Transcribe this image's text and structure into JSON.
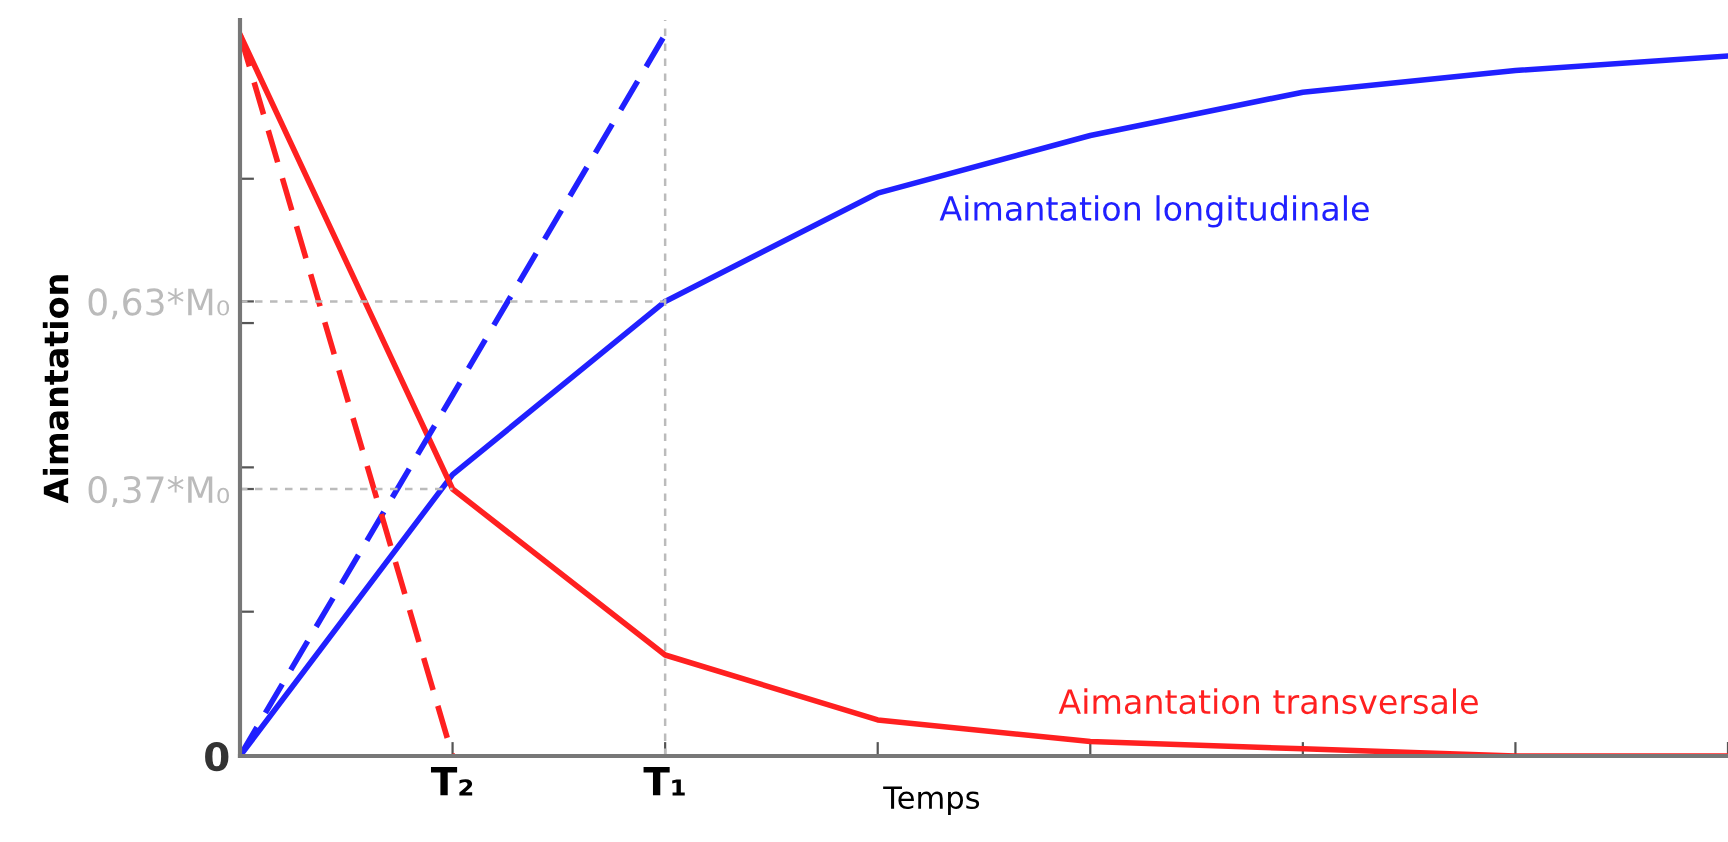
{
  "chart_data": {
    "type": "line",
    "xlabel": "Temps",
    "ylabel": "Aimantation",
    "categories": [
      null,
      "T₂",
      "T₁",
      null,
      null,
      null,
      null,
      null
    ],
    "ylim": [
      0,
      1.02
    ],
    "yticks": [
      0,
      {
        "value": 0.2,
        "label": null
      },
      {
        "value": 0.37,
        "label": "0,37*M₀"
      },
      {
        "value": 0.4,
        "label": null
      },
      {
        "value": 0.6,
        "label": null
      },
      {
        "value": 0.63,
        "label": "0,63*M₀"
      },
      {
        "value": 0.8,
        "label": null
      }
    ],
    "ref_lines": [
      {
        "axis": "x",
        "value": "T₁",
        "color": "#bbbbbb",
        "line_style": "dotted"
      }
    ],
    "series": [
      {
        "name": "Aimantation longitudinale",
        "color": "#2020ff",
        "line_style": "solid",
        "values": [
          0,
          0.39,
          0.63,
          0.78,
          0.86,
          0.92,
          0.95,
          0.97
        ]
      },
      {
        "name": "Aimantation transversale",
        "color": "#ff2020",
        "line_style": "solid",
        "values": [
          1,
          0.37,
          0.14,
          0.05,
          0.02,
          0.01,
          0,
          0
        ]
      },
      {
        "color": "#2020ff",
        "line_style": "dashed",
        "values": [
          0,
          0.5,
          1,
          null,
          null,
          null,
          null,
          null
        ]
      },
      {
        "color": "#ff2020",
        "line_style": "dashed",
        "values": [
          1,
          0,
          null,
          null,
          null,
          null,
          null,
          null
        ]
      },
      {
        "color": "#bbbbbb",
        "line_style": "dotted",
        "values": [
          0.63,
          0.63,
          0.63,
          null,
          null,
          null,
          null,
          null
        ]
      },
      {
        "color": "#bbbbbb",
        "line_style": "dotted",
        "values": [
          0.37,
          0.37,
          null,
          null,
          null,
          null,
          null,
          null
        ]
      }
    ]
  }
}
